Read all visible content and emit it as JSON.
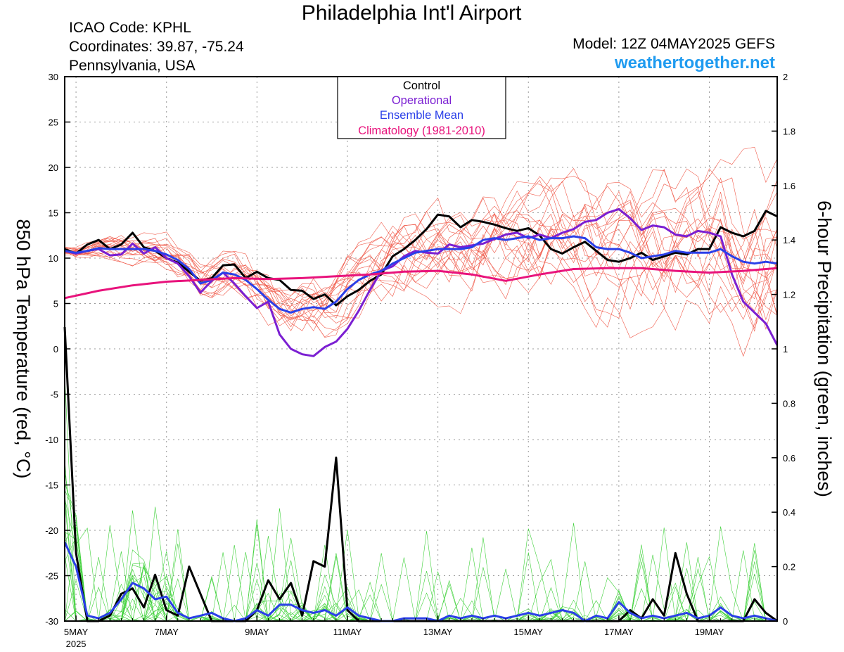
{
  "header": {
    "title": "Philadelphia Int'l Airport",
    "icao": "ICAO Code: KPHL",
    "coordinates": "Coordinates: 39.87, -75.24",
    "region": "Pennsylvania, USA",
    "model": "Model: 12Z 04MAY2025 GEFS",
    "site": "weathertogether.net"
  },
  "colors": {
    "control": "#000000",
    "operational": "#7b1fd2",
    "ensemble_mean": "#2a3fe8",
    "climatology": "#e8137c",
    "members_temp": "#f05a4a",
    "members_precip": "#3fd13a",
    "site": "#1f9bf0"
  },
  "chart_data": {
    "type": "line",
    "xlabel": "",
    "ylabel": "850 hPa Temperature (red, °C)",
    "y2label": "6-hour Precipitation (green, inches)",
    "xlim": [
      4.75,
      20.5
    ],
    "ylim": [
      -30,
      30
    ],
    "y2lim": [
      0,
      2
    ],
    "x_ticks": [
      {
        "x": 5,
        "label": "5MAY",
        "sublabel": "2025"
      },
      {
        "x": 7,
        "label": "7MAY"
      },
      {
        "x": 9,
        "label": "9MAY"
      },
      {
        "x": 11,
        "label": "11MAY"
      },
      {
        "x": 13,
        "label": "13MAY"
      },
      {
        "x": 15,
        "label": "15MAY"
      },
      {
        "x": 17,
        "label": "17MAY"
      },
      {
        "x": 19,
        "label": "19MAY"
      }
    ],
    "y_ticks": [
      30,
      25,
      20,
      15,
      10,
      5,
      0,
      -5,
      -10,
      -15,
      -20,
      -25,
      -30
    ],
    "y2_ticks": [
      2,
      1.8,
      1.6,
      1.4,
      1.2,
      1,
      0.8,
      0.6,
      0.4,
      0.2,
      0
    ],
    "grid": true,
    "legend": {
      "position": "top-center",
      "entries": [
        "Control",
        "Operational",
        "Ensemble Mean",
        "Climatology (1981-2010)"
      ]
    },
    "series": [
      {
        "name": "Control",
        "axis": "temp",
        "x": [
          4.75,
          5,
          5.25,
          5.5,
          5.75,
          6,
          6.25,
          6.5,
          6.75,
          7,
          7.25,
          7.5,
          7.75,
          8,
          8.25,
          8.5,
          8.75,
          9,
          9.25,
          9.5,
          9.75,
          10,
          10.25,
          10.5,
          10.75,
          11,
          11.25,
          11.5,
          11.75,
          12,
          12.25,
          12.5,
          12.75,
          13,
          13.25,
          13.5,
          13.75,
          14,
          14.25,
          14.5,
          14.75,
          15,
          15.25,
          15.5,
          15.75,
          16,
          16.25,
          16.5,
          16.75,
          17,
          17.25,
          17.5,
          17.75,
          18,
          18.25,
          18.5,
          18.75,
          19,
          19.25,
          19.5,
          19.75,
          20,
          20.25,
          20.5
        ],
        "values": [
          11,
          10.5,
          11.5,
          12,
          11,
          11.5,
          12.8,
          11.2,
          10.8,
          10,
          9.5,
          8.5,
          7.5,
          7.8,
          9.2,
          9.3,
          7.8,
          8.5,
          7.8,
          7.6,
          6.5,
          6.4,
          5.5,
          6,
          4.8,
          5.8,
          6.5,
          7.5,
          8.2,
          10.2,
          11,
          12,
          13.2,
          14.8,
          14.6,
          13.4,
          14.2,
          14,
          13.7,
          13.3,
          13,
          13.3,
          12.5,
          11,
          10.5,
          11.2,
          11.8,
          10.8,
          9.8,
          9.6,
          10,
          10.6,
          9.8,
          10.2,
          10.6,
          10.4,
          11,
          11,
          13.4,
          12.8,
          12.4,
          13,
          15.2,
          14.6
        ]
      },
      {
        "name": "Operational",
        "axis": "temp",
        "x": [
          4.75,
          5,
          5.25,
          5.5,
          5.75,
          6,
          6.25,
          6.5,
          6.75,
          7,
          7.25,
          7.5,
          7.75,
          8,
          8.25,
          8.5,
          8.75,
          9,
          9.25,
          9.5,
          9.75,
          10,
          10.25,
          10.5,
          10.75,
          11,
          11.25,
          11.5,
          11.75,
          12,
          12.25,
          12.5,
          12.75,
          13,
          13.25,
          13.5,
          13.75,
          14,
          14.25,
          14.5,
          14.75,
          15,
          15.25,
          15.5,
          15.75,
          16,
          16.25,
          16.5,
          16.75,
          17,
          17.25,
          17.5,
          17.75,
          18,
          18.25,
          18.5,
          18.75,
          19,
          19.25,
          19.5,
          19.75,
          20,
          20.25,
          20.5
        ],
        "values": [
          10.8,
          10.5,
          10.8,
          11,
          10.3,
          10.4,
          11.6,
          10.5,
          11.2,
          10,
          9.4,
          8,
          6.2,
          7.5,
          8.4,
          7.2,
          5.8,
          4.5,
          5.2,
          1.6,
          0,
          -0.6,
          -0.8,
          0.2,
          0.8,
          2.2,
          4.2,
          6.5,
          8.6,
          9.1,
          10.2,
          10.8,
          10.6,
          10.5,
          11.5,
          11.2,
          11.4,
          11.6,
          12.1,
          12.6,
          12.8,
          12.2,
          12.6,
          12.2,
          12.8,
          13.2,
          14,
          14.2,
          15,
          15.4,
          14.4,
          13.1,
          13.6,
          13.4,
          12.6,
          12.4,
          13,
          12.8,
          12.4,
          8.2,
          5.2,
          4,
          2.8,
          0.4
        ]
      },
      {
        "name": "Ensemble Mean",
        "axis": "temp",
        "x": [
          4.75,
          5,
          5.25,
          5.5,
          5.75,
          6,
          6.25,
          6.5,
          6.75,
          7,
          7.25,
          7.5,
          7.75,
          8,
          8.25,
          8.5,
          8.75,
          9,
          9.25,
          9.5,
          9.75,
          10,
          10.25,
          10.5,
          10.75,
          11,
          11.25,
          11.5,
          11.75,
          12,
          12.25,
          12.5,
          12.75,
          13,
          13.25,
          13.5,
          13.75,
          14,
          14.25,
          14.5,
          14.75,
          15,
          15.25,
          15.5,
          15.75,
          16,
          16.25,
          16.5,
          16.75,
          17,
          17.25,
          17.5,
          17.75,
          18,
          18.25,
          18.5,
          18.75,
          19,
          19.25,
          19.5,
          19.75,
          20,
          20.25,
          20.5
        ],
        "values": [
          10.8,
          10.6,
          10.8,
          11.1,
          11,
          11,
          11,
          11,
          10.8,
          10.4,
          9.8,
          8.8,
          7.2,
          7.6,
          8.4,
          8.2,
          7.6,
          6.6,
          5.4,
          4.4,
          4,
          4.4,
          4.6,
          4.4,
          5.2,
          6.6,
          7.6,
          8.2,
          8.6,
          9.4,
          10,
          10.6,
          10.8,
          11,
          11,
          11,
          11.2,
          12,
          12.2,
          12,
          12.2,
          12.4,
          12,
          12.2,
          12.2,
          12.4,
          12.2,
          11.2,
          11,
          11,
          10.6,
          10,
          10.2,
          10.4,
          10.8,
          10.6,
          10.6,
          10.6,
          11,
          10.2,
          9.6,
          9.4,
          9.6,
          9.4
        ]
      },
      {
        "name": "Climatology (1981-2010)",
        "axis": "temp",
        "x": [
          4.75,
          5.5,
          6.25,
          7,
          7.75,
          8.5,
          9.25,
          10,
          10.75,
          11.5,
          12.25,
          13,
          13.75,
          14.5,
          15.25,
          16,
          16.75,
          17.5,
          18.25,
          19,
          19.75,
          20.5
        ],
        "values": [
          5.6,
          6.4,
          7,
          7.4,
          7.6,
          7.8,
          7.7,
          7.8,
          8,
          8.2,
          8.5,
          8.6,
          8.2,
          7.5,
          8.2,
          8.8,
          8.9,
          8.9,
          8.6,
          8.4,
          8.6,
          8.9
        ]
      },
      {
        "name": "Control",
        "axis": "precip",
        "x": [
          4.75,
          5,
          5.25,
          5.5,
          5.75,
          6,
          6.25,
          6.5,
          6.75,
          7,
          7.25,
          7.5,
          7.75,
          8,
          8.25,
          8.5,
          8.75,
          9,
          9.25,
          9.5,
          9.75,
          10,
          10.25,
          10.5,
          10.75,
          11,
          11.25,
          11.5,
          11.75,
          12,
          12.25,
          12.5,
          12.75,
          13,
          13.25,
          13.5,
          13.75,
          14,
          14.25,
          14.5,
          14.75,
          15,
          15.25,
          15.5,
          15.75,
          16,
          16.25,
          16.5,
          16.75,
          17,
          17.25,
          17.5,
          17.75,
          18,
          18.25,
          18.5,
          18.75,
          19,
          19.25,
          19.5,
          19.75,
          20,
          20.25,
          20.5
        ],
        "values": [
          1.08,
          0.25,
          0,
          0,
          0.02,
          0.1,
          0.12,
          0.05,
          0.17,
          0.04,
          0.02,
          0.2,
          0.1,
          0,
          0,
          0,
          0,
          0.04,
          0.15,
          0.08,
          0.14,
          0.02,
          0.22,
          0.2,
          0.6,
          0.04,
          0,
          0,
          0,
          0,
          0,
          0,
          0,
          0,
          0,
          0,
          0,
          0,
          0,
          0,
          0,
          0,
          0,
          0,
          0,
          0,
          0,
          0,
          0,
          0,
          0.04,
          0.01,
          0.08,
          0.02,
          0.25,
          0.1,
          0,
          0,
          0,
          0,
          0,
          0.08,
          0.03,
          0
        ]
      },
      {
        "name": "Ensemble Mean",
        "axis": "precip",
        "x": [
          4.75,
          5,
          5.25,
          5.5,
          5.75,
          6,
          6.25,
          6.5,
          6.75,
          7,
          7.25,
          7.5,
          7.75,
          8,
          8.25,
          8.5,
          8.75,
          9,
          9.25,
          9.5,
          9.75,
          10,
          10.25,
          10.5,
          10.75,
          11,
          11.25,
          11.5,
          11.75,
          12,
          12.25,
          12.5,
          12.75,
          13,
          13.25,
          13.5,
          13.75,
          14,
          14.25,
          14.5,
          14.75,
          15,
          15.25,
          15.5,
          15.75,
          16,
          16.25,
          16.5,
          16.75,
          17,
          17.25,
          17.5,
          17.75,
          18,
          18.25,
          18.5,
          18.75,
          19,
          19.25,
          19.5,
          19.75,
          20,
          20.25,
          20.5
        ],
        "values": [
          0.29,
          0.2,
          0.02,
          0.01,
          0.03,
          0.08,
          0.14,
          0.12,
          0.08,
          0.09,
          0.03,
          0.01,
          0.02,
          0.03,
          0.01,
          0,
          0.01,
          0.04,
          0.02,
          0.06,
          0.06,
          0.04,
          0.03,
          0.04,
          0.02,
          0.05,
          0.02,
          0.01,
          0,
          0,
          0.01,
          0.01,
          0.01,
          0,
          0.02,
          0.01,
          0.02,
          0.01,
          0.02,
          0.01,
          0.02,
          0.03,
          0.02,
          0.03,
          0.04,
          0.03,
          0,
          0.02,
          0.01,
          0.07,
          0.03,
          0.01,
          0.02,
          0.01,
          0.02,
          0.03,
          0.01,
          0.02,
          0.05,
          0.02,
          0.01,
          0.02,
          0.01,
          0
        ]
      }
    ]
  }
}
